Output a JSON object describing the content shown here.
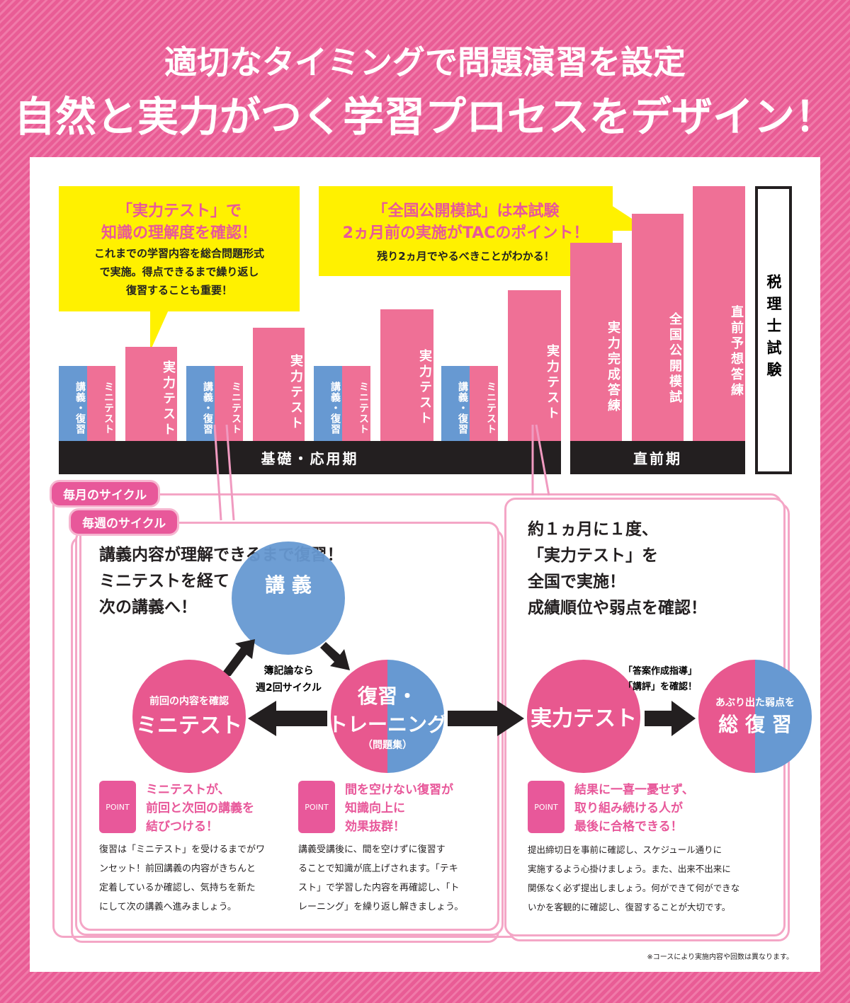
{
  "title": {
    "line1": "適切なタイミングで問題演習を設定",
    "line2": "自然と実力がつく学習プロセスをデザイン！"
  },
  "callouts": [
    {
      "heading1": "「実力テスト」で",
      "heading2": "知識の理解度を確認！",
      "body1": "これまでの学習内容を総合問題形式",
      "body2": "で実施。得点できるまで繰り返し",
      "body3": "復習することも重要！"
    },
    {
      "heading1": "「全国公開模試」は本試験",
      "heading2": "2ヵ月前の実施がTACのポイント！",
      "body1": "残り2ヵ月でやるべきことがわかる！"
    }
  ],
  "timeline": {
    "lecture": "講義・復習",
    "minitest": "ミニテスト",
    "test": "実力テスト",
    "final_drill": "実力完成答練",
    "mock": "全国公開模試",
    "pre_drill": "直前予想答練",
    "period1": "基礎・応用期",
    "period2": "直前期",
    "exam": "税理士試験"
  },
  "colors": {
    "pink": "#ef7096",
    "blue": "#6799d2",
    "yellow": "#fff100",
    "accent": "#e8589a"
  },
  "weekly": {
    "monthly_label": "毎月のサイクル",
    "weekly_label": "毎週のサイクル",
    "lead1": "講義内容が理解できるまで復習！",
    "lead2": "ミニテストを経て",
    "lead3": "次の講義へ！",
    "lecture": "講 義",
    "cycle_note1": "簿記論なら",
    "cycle_note2": "週2回サイクル",
    "mini_sub": "前回の内容を確認",
    "mini": "ミニテスト",
    "review1": "復習・",
    "review2": "トレーニング",
    "review_sub": "（問題集）"
  },
  "monthly": {
    "lead1": "約１ヵ月に１度、",
    "lead2": "「実力テスト」を",
    "lead3": "全国で実施！",
    "lead4": "成績順位や弱点を確認！",
    "test": "実力テスト",
    "note1": "「答案作成指導」",
    "note2": "「講評」を確認！",
    "review_sub": "あぶり出た弱点を",
    "review": "総 復 習"
  },
  "points": [
    {
      "badge": "POINT",
      "h1": "ミニテストが、",
      "h2": "前回と次回の講義を",
      "h3": "結びつける！",
      "body": [
        "復習は「ミニテスト」を受けるまでがワ",
        "ンセット！前回講義の内容がきちんと",
        "定着しているか確認し、気持ちを新た",
        "にして次の講義へ進みましょう。"
      ]
    },
    {
      "badge": "POINT",
      "h1": "間を空けない復習が",
      "h2": "知識向上に",
      "h3": "効果抜群！",
      "body": [
        "講義受講後に、間を空けずに復習す",
        "ることで知識が底上げされます。「テキ",
        "スト」で学習した内容を再確認し、「ト",
        "レーニング」を繰り返し解きましょう。"
      ]
    },
    {
      "badge": "POINT",
      "h1": "結果に一喜一憂せず、",
      "h2": "取り組み続ける人が",
      "h3": "最後に合格できる！",
      "body": [
        "提出締切日を事前に確認し、スケジュール通りに",
        "実施するよう心掛けましょう。また、出来不出来に",
        "関係なく必ず提出しましょう。何ができて何ができな",
        "いかを客観的に確認し、復習することが大切です。"
      ]
    }
  ],
  "footnote": "※コースにより実施内容や回数は異なります。"
}
